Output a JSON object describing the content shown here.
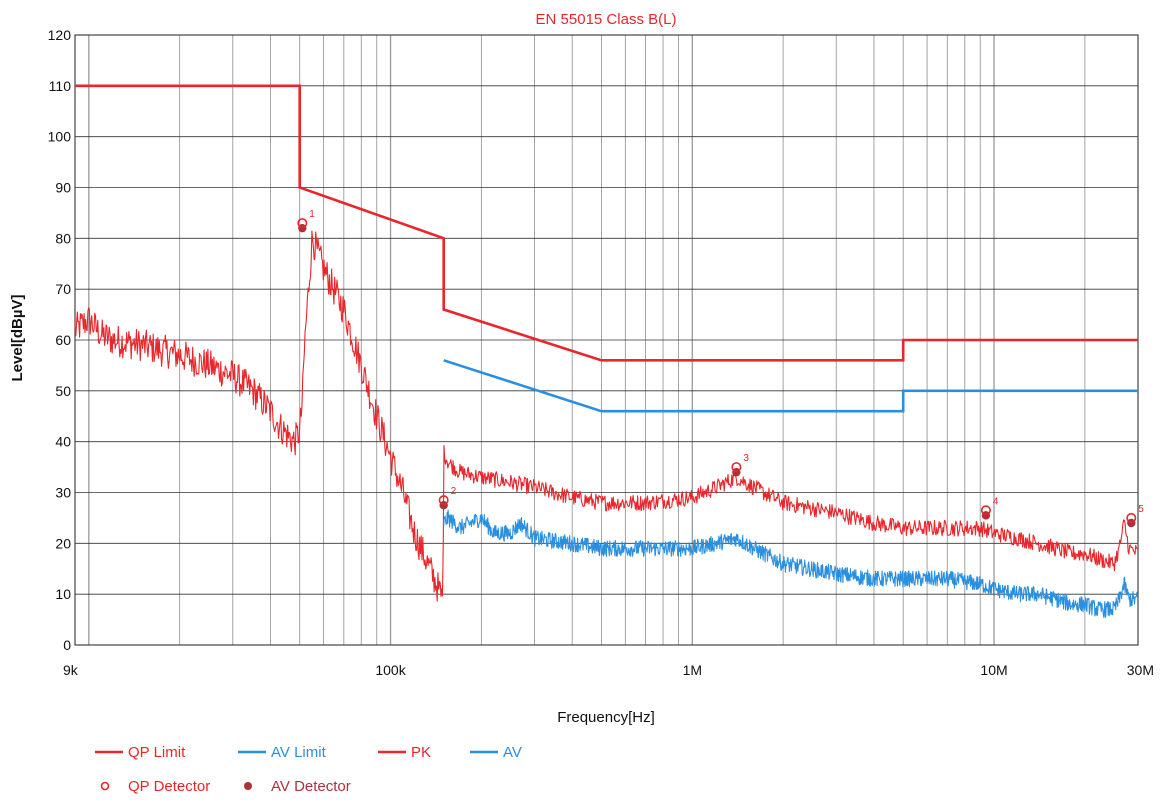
{
  "chart_data": {
    "type": "line",
    "title": "EN 55015 Class B(L)",
    "xlabel": "Frequency[Hz]",
    "ylabel": "Level[dBµV]",
    "x_scale": "log",
    "xlim": [
      9000,
      30000000
    ],
    "ylim": [
      0,
      120
    ],
    "x_ticks": [
      {
        "value": 9000,
        "label": "9k"
      },
      {
        "value": 100000,
        "label": "100k"
      },
      {
        "value": 1000000,
        "label": "1M"
      },
      {
        "value": 10000000,
        "label": "10M"
      },
      {
        "value": 30000000,
        "label": "30M"
      }
    ],
    "y_ticks": [
      0,
      10,
      20,
      30,
      40,
      50,
      60,
      70,
      80,
      90,
      100,
      110,
      120
    ],
    "grid": true,
    "legend_position": "bottom-left",
    "colors": {
      "red": "#e8262b",
      "blue": "#2b8fe0",
      "grid": "#9a9a9a",
      "title": "#e8262b",
      "marker_dark": "#b0303a"
    },
    "series": [
      {
        "name": "QP Limit",
        "kind": "limit",
        "color": "#e8262b",
        "x": [
          9000,
          50000,
          50000,
          150000,
          150000,
          500000,
          5000000,
          5000000,
          30000000
        ],
        "y": [
          110,
          110,
          90,
          80,
          66,
          56,
          56,
          60,
          60
        ]
      },
      {
        "name": "AV Limit",
        "kind": "limit",
        "color": "#2b8fe0",
        "x": [
          150000,
          500000,
          5000000,
          5000000,
          30000000
        ],
        "y": [
          56,
          46,
          46,
          50,
          50
        ]
      },
      {
        "name": "PK",
        "kind": "trace",
        "color": "#e8262b",
        "x": [
          9000,
          10000,
          11000,
          12000,
          15000,
          20000,
          25000,
          30000,
          35000,
          40000,
          43000,
          46000,
          48000,
          50000,
          51000,
          52000,
          55000,
          60000,
          70000,
          80000,
          90000,
          100000,
          110000,
          120000,
          135000,
          149000,
          150000,
          155000,
          170000,
          200000,
          250000,
          300000,
          400000,
          500000,
          700000,
          1000000,
          1200000,
          1400000,
          1600000,
          2000000,
          3000000,
          4000000,
          5000000,
          7000000,
          9000000,
          10000000,
          12000000,
          14000000,
          16000000,
          18000000,
          20000000,
          22000000,
          25000000,
          26000000,
          27000000,
          28000000,
          30000000
        ],
        "y": [
          62,
          64,
          61,
          60,
          59,
          57,
          55,
          53,
          50,
          46,
          43,
          41,
          40,
          42,
          48,
          60,
          80,
          74,
          66,
          55,
          45,
          37,
          30,
          22,
          15,
          9,
          38,
          36,
          34,
          33,
          32,
          31,
          29,
          28,
          28,
          29,
          31,
          33,
          31,
          28,
          26,
          24,
          23,
          23,
          23,
          22,
          21,
          20,
          19,
          18,
          18,
          17,
          16,
          19,
          24,
          19,
          18
        ]
      },
      {
        "name": "AV",
        "kind": "trace",
        "color": "#2b8fe0",
        "x": [
          150000,
          155000,
          170000,
          200000,
          220000,
          250000,
          270000,
          300000,
          400000,
          500000,
          700000,
          1000000,
          1200000,
          1400000,
          1600000,
          2000000,
          3000000,
          4000000,
          5000000,
          7000000,
          9000000,
          10000000,
          12000000,
          14000000,
          16000000,
          18000000,
          20000000,
          22000000,
          25000000,
          26000000,
          27000000,
          28000000,
          30000000
        ],
        "y": [
          24,
          25,
          23,
          25,
          22,
          22,
          24,
          21,
          20,
          19,
          19,
          19,
          20,
          21,
          19,
          16,
          14,
          13,
          13,
          13,
          12,
          11,
          10,
          10,
          9,
          8,
          8,
          7,
          7,
          9,
          12,
          9,
          9
        ]
      }
    ],
    "markers": [
      {
        "label": "1",
        "x": 51000,
        "qp": 83,
        "av": 82
      },
      {
        "label": "2",
        "x": 150000,
        "qp": 28.5,
        "av": 27.5
      },
      {
        "label": "3",
        "x": 1400000,
        "qp": 35,
        "av": 34
      },
      {
        "label": "4",
        "x": 9400000,
        "qp": 26.5,
        "av": 25.5
      },
      {
        "label": "5",
        "x": 28500000,
        "qp": 25,
        "av": 24
      }
    ],
    "legend": [
      {
        "label": "QP Limit",
        "symbol": "line",
        "color": "#e8262b"
      },
      {
        "label": "AV Limit",
        "symbol": "line",
        "color": "#2b8fe0"
      },
      {
        "label": "PK",
        "symbol": "line",
        "color": "#e8262b"
      },
      {
        "label": "AV",
        "symbol": "line",
        "color": "#2b8fe0"
      },
      {
        "label": "QP Detector",
        "symbol": "open-circle",
        "color": "#e8262b"
      },
      {
        "label": "AV Detector",
        "symbol": "filled-circle",
        "color": "#b0303a"
      }
    ]
  }
}
